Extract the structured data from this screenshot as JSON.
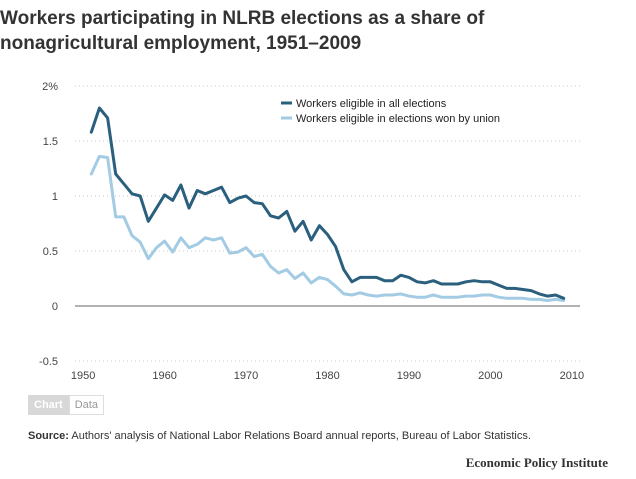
{
  "header": {
    "title_line1": "Workers participating in NLRB elections as a share of",
    "title_line2": "nonagricultural employment, 1951–2009"
  },
  "tabs": {
    "chart": "Chart",
    "data": "Data"
  },
  "source": {
    "label": "Source:",
    "text": "Authors' analysis of National Labor Relations Board annual reports, Bureau of Labor Statistics."
  },
  "brand": "Economic Policy Institute",
  "chart_data": {
    "type": "line",
    "title": "Workers participating in NLRB elections as a share of nonagricultural employment, 1951–2009",
    "xlabel": "",
    "ylabel": "",
    "xlim": [
      1949,
      2011
    ],
    "ylim": [
      -0.5,
      2
    ],
    "x_ticks": [
      1950,
      1960,
      1970,
      1980,
      1990,
      2000,
      2010
    ],
    "y_ticks": [
      -0.5,
      0,
      0.5,
      1,
      1.5,
      2
    ],
    "y_tick_labels": [
      "-0.5",
      "0",
      "0.5",
      "1",
      "1.5",
      "2%"
    ],
    "grid": true,
    "legend_position": "top-right",
    "x": [
      1951,
      1952,
      1953,
      1954,
      1955,
      1956,
      1957,
      1958,
      1959,
      1960,
      1961,
      1962,
      1963,
      1964,
      1965,
      1966,
      1967,
      1968,
      1969,
      1970,
      1971,
      1972,
      1973,
      1974,
      1975,
      1976,
      1977,
      1978,
      1979,
      1980,
      1981,
      1982,
      1983,
      1984,
      1985,
      1986,
      1987,
      1988,
      1989,
      1990,
      1991,
      1992,
      1993,
      1994,
      1995,
      1996,
      1997,
      1998,
      1999,
      2000,
      2001,
      2002,
      2003,
      2004,
      2005,
      2006,
      2007,
      2008,
      2009
    ],
    "series": [
      {
        "name": "Workers eligible in all elections",
        "color": "#2a5f7e",
        "values": [
          1.58,
          1.8,
          1.71,
          1.2,
          1.11,
          1.02,
          1.0,
          0.77,
          0.89,
          1.01,
          0.96,
          1.1,
          0.89,
          1.05,
          1.02,
          1.05,
          1.08,
          0.94,
          0.98,
          1.0,
          0.94,
          0.93,
          0.82,
          0.8,
          0.86,
          0.68,
          0.77,
          0.6,
          0.73,
          0.65,
          0.54,
          0.33,
          0.22,
          0.26,
          0.26,
          0.26,
          0.23,
          0.23,
          0.28,
          0.26,
          0.22,
          0.21,
          0.23,
          0.2,
          0.2,
          0.2,
          0.22,
          0.23,
          0.22,
          0.22,
          0.19,
          0.16,
          0.16,
          0.15,
          0.14,
          0.11,
          0.09,
          0.1,
          0.07
        ]
      },
      {
        "name": "Workers eligible in elections won by union",
        "color": "#a3cbe3",
        "values": [
          1.2,
          1.36,
          1.35,
          0.81,
          0.81,
          0.64,
          0.58,
          0.43,
          0.53,
          0.59,
          0.49,
          0.62,
          0.53,
          0.56,
          0.62,
          0.6,
          0.62,
          0.48,
          0.49,
          0.53,
          0.45,
          0.47,
          0.36,
          0.3,
          0.33,
          0.25,
          0.3,
          0.21,
          0.26,
          0.24,
          0.18,
          0.11,
          0.1,
          0.12,
          0.1,
          0.09,
          0.1,
          0.1,
          0.11,
          0.09,
          0.08,
          0.08,
          0.1,
          0.08,
          0.08,
          0.08,
          0.09,
          0.09,
          0.1,
          0.1,
          0.08,
          0.07,
          0.07,
          0.07,
          0.06,
          0.06,
          0.05,
          0.06,
          0.05
        ]
      }
    ]
  }
}
